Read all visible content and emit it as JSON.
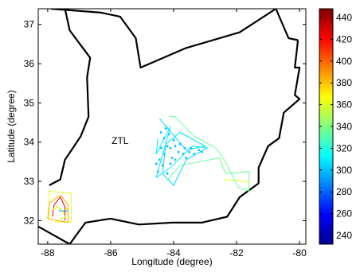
{
  "chart_data": {
    "type": "map",
    "xlabel": "Longitude (degree)",
    "ylabel": "Latitude (degree)",
    "xlim": [
      -88.3,
      -79.8
    ],
    "ylim": [
      31.4,
      37.4
    ],
    "xticks": [
      -88,
      -86,
      -84,
      -82,
      -80
    ],
    "yticks": [
      32,
      33,
      34,
      35,
      36,
      37
    ],
    "grid": false,
    "region_label": {
      "text": "ZTL",
      "lon": -85.7,
      "lat": 33.95
    },
    "colorbar": {
      "ticks": [
        240,
        260,
        280,
        300,
        320,
        340,
        360,
        380,
        400,
        420,
        440
      ],
      "range": [
        232,
        448
      ],
      "colormap": "jet",
      "placement": "right"
    },
    "boundaries": [
      {
        "name": "border-north",
        "points": [
          [
            -87.9,
            37.4
          ],
          [
            -86.3,
            37.3
          ],
          [
            -85.7,
            37.2
          ],
          [
            -85.2,
            36.65
          ],
          [
            -85.05,
            35.9
          ],
          [
            -83.6,
            36.4
          ],
          [
            -81.9,
            36.8
          ],
          [
            -80.75,
            37.4
          ]
        ]
      },
      {
        "name": "border-east-top",
        "points": [
          [
            -80.75,
            37.4
          ],
          [
            -80.35,
            36.65
          ],
          [
            -80.05,
            36.6
          ]
        ]
      },
      {
        "name": "border-east",
        "points": [
          [
            -80.05,
            36.6
          ],
          [
            -80.15,
            35.9
          ],
          [
            -80.0,
            35.9
          ],
          [
            -80.15,
            35.2
          ],
          [
            -80.0,
            35.1
          ],
          [
            -80.5,
            34.75
          ],
          [
            -80.65,
            34.1
          ],
          [
            -81.0,
            33.9
          ],
          [
            -81.3,
            33.35
          ],
          [
            -81.3,
            32.95
          ],
          [
            -81.9,
            32.6
          ],
          [
            -82.3,
            32.1
          ],
          [
            -83.1,
            31.95
          ],
          [
            -84.05,
            31.95
          ],
          [
            -85.1,
            31.9
          ],
          [
            -86.0,
            32.05
          ],
          [
            -86.8,
            31.95
          ],
          [
            -87.3,
            31.4
          ],
          [
            -88.3,
            31.85
          ]
        ]
      },
      {
        "name": "border-west",
        "points": [
          [
            -87.45,
            37.4
          ],
          [
            -87.3,
            36.85
          ],
          [
            -86.65,
            36.15
          ],
          [
            -86.75,
            35.65
          ],
          [
            -86.7,
            34.65
          ],
          [
            -86.95,
            34.15
          ],
          [
            -87.45,
            33.55
          ],
          [
            -87.6,
            33.05
          ],
          [
            -87.95,
            32.9
          ]
        ]
      }
    ],
    "tracks": [
      {
        "name": "cyan-track-a",
        "value": 305,
        "points": [
          [
            -84.45,
            34.6
          ],
          [
            -83.6,
            33.8
          ],
          [
            -83.0,
            33.9
          ],
          [
            -83.8,
            34.25
          ],
          [
            -84.25,
            33.95
          ],
          [
            -84.35,
            33.2
          ],
          [
            -84.0,
            32.9
          ],
          [
            -83.6,
            33.55
          ],
          [
            -82.95,
            33.85
          ]
        ]
      },
      {
        "name": "cyan-track-b",
        "value": 310,
        "points": [
          [
            -84.5,
            34.1
          ],
          [
            -84.55,
            33.7
          ],
          [
            -84.1,
            34.4
          ],
          [
            -84.55,
            33.1
          ],
          [
            -84.1,
            33.35
          ],
          [
            -83.4,
            33.9
          ],
          [
            -82.9,
            33.85
          ]
        ]
      },
      {
        "name": "green-track",
        "value": 335,
        "points": [
          [
            -84.15,
            34.65
          ],
          [
            -83.95,
            34.65
          ],
          [
            -83.35,
            34.15
          ],
          [
            -82.65,
            33.85
          ],
          [
            -82.35,
            33.5
          ],
          [
            -81.95,
            32.85
          ],
          [
            -81.6,
            32.75
          ],
          [
            -81.6,
            33.25
          ],
          [
            -82.35,
            33.2
          ],
          [
            -82.55,
            33.6
          ],
          [
            -83.8,
            33.4
          ],
          [
            -84.25,
            33.0
          ]
        ]
      },
      {
        "name": "yellow-line-east",
        "value": 360,
        "points": [
          [
            -82.4,
            33.05
          ],
          [
            -81.55,
            32.98
          ]
        ]
      },
      {
        "name": "yellow-box",
        "value": 362,
        "points": [
          [
            -87.8,
            31.97
          ],
          [
            -87.25,
            31.97
          ],
          [
            -87.25,
            32.7
          ],
          [
            -87.95,
            32.75
          ],
          [
            -87.95,
            32.05
          ]
        ]
      },
      {
        "name": "orange-outline",
        "value": 385,
        "points": [
          [
            -88.0,
            32.05
          ],
          [
            -87.95,
            32.45
          ],
          [
            -87.6,
            32.65
          ],
          [
            -87.35,
            32.4
          ],
          [
            -87.35,
            31.95
          ],
          [
            -88.0,
            32.05
          ]
        ]
      },
      {
        "name": "red-inner",
        "value": 425,
        "points": [
          [
            -87.85,
            32.1
          ],
          [
            -87.8,
            32.4
          ],
          [
            -87.6,
            32.6
          ],
          [
            -87.45,
            32.35
          ],
          [
            -87.45,
            32.0
          ]
        ]
      },
      {
        "name": "blue-line-sw",
        "value": 290,
        "points": [
          [
            -87.65,
            32.25
          ],
          [
            -87.35,
            32.25
          ]
        ]
      }
    ],
    "scatter_groups": [
      {
        "name": "cyan-points",
        "value": 300,
        "points": [
          [
            -84.4,
            34.25
          ],
          [
            -84.3,
            34.1
          ],
          [
            -84.2,
            33.9
          ],
          [
            -84.1,
            33.85
          ],
          [
            -84.3,
            33.7
          ],
          [
            -84.45,
            33.55
          ],
          [
            -84.35,
            33.4
          ],
          [
            -84.5,
            33.25
          ],
          [
            -84.2,
            33.2
          ],
          [
            -84.05,
            33.6
          ],
          [
            -83.95,
            33.9
          ],
          [
            -83.85,
            33.75
          ],
          [
            -83.7,
            33.7
          ],
          [
            -83.6,
            33.6
          ],
          [
            -83.5,
            33.75
          ],
          [
            -83.35,
            33.7
          ],
          [
            -83.2,
            33.8
          ],
          [
            -83.1,
            33.75
          ],
          [
            -84.25,
            34.35
          ],
          [
            -84.15,
            34.2
          ],
          [
            -84.0,
            34.05
          ],
          [
            -83.8,
            33.95
          ],
          [
            -84.4,
            33.85
          ],
          [
            -84.55,
            33.45
          ],
          [
            -83.65,
            33.85
          ],
          [
            -83.45,
            33.85
          ],
          [
            -84.1,
            33.45
          ],
          [
            -83.95,
            33.55
          ]
        ]
      },
      {
        "name": "yellow-points",
        "value": 360,
        "points": [
          [
            -87.8,
            32.3
          ],
          [
            -87.7,
            32.35
          ],
          [
            -87.6,
            32.3
          ],
          [
            -87.5,
            32.2
          ],
          [
            -87.45,
            32.1
          ],
          [
            -87.55,
            32.05
          ],
          [
            -87.4,
            32.3
          ]
        ]
      }
    ]
  }
}
